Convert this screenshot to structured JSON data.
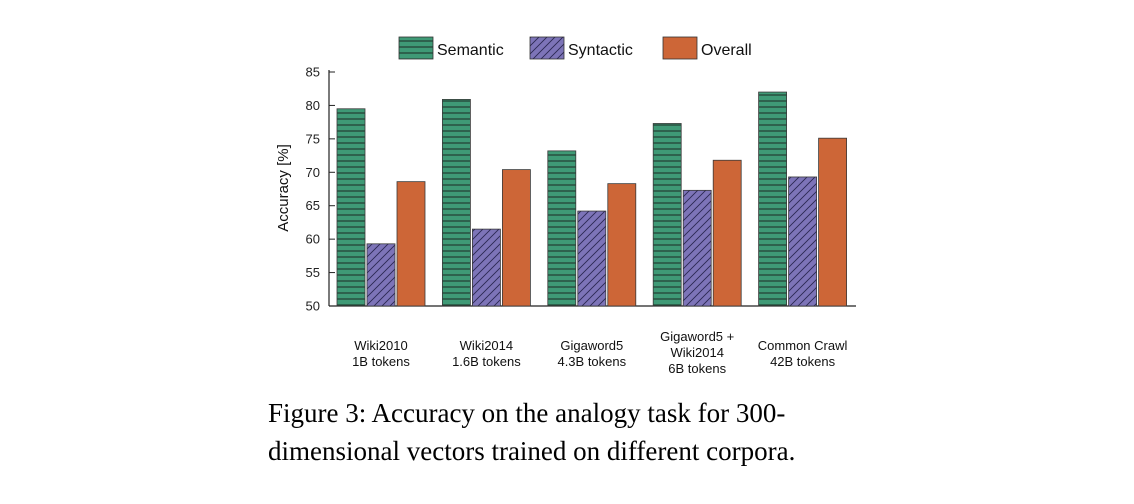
{
  "chart_data": {
    "type": "bar",
    "ylabel": "Accuracy [%]",
    "ylim": [
      50,
      85
    ],
    "yticks": [
      50,
      55,
      60,
      65,
      70,
      75,
      80,
      85
    ],
    "grid": false,
    "legend_position": "top",
    "categories": [
      [
        "Wiki2010",
        "1B tokens"
      ],
      [
        "Wiki2014",
        "1.6B tokens"
      ],
      [
        "Gigaword5",
        "4.3B tokens"
      ],
      [
        "Gigaword5 +",
        "Wiki2014",
        "6B tokens"
      ],
      [
        "Common Crawl",
        "42B tokens"
      ]
    ],
    "series": [
      {
        "name": "Semantic",
        "values": [
          79.5,
          80.9,
          73.2,
          77.3,
          82.0
        ],
        "color": "#3f9a76",
        "pattern": "horizontal-lines"
      },
      {
        "name": "Syntactic",
        "values": [
          59.3,
          61.5,
          64.2,
          67.3,
          69.3
        ],
        "color": "#7d74b8",
        "pattern": "diagonal-hatch"
      },
      {
        "name": "Overall",
        "values": [
          68.6,
          70.4,
          68.3,
          71.8,
          75.1
        ],
        "color": "#cd6637",
        "pattern": "solid"
      }
    ]
  },
  "caption": {
    "line1": "Figure 3:  Accuracy on the analogy task for 300-",
    "line2": "dimensional vectors trained on different corpora."
  }
}
